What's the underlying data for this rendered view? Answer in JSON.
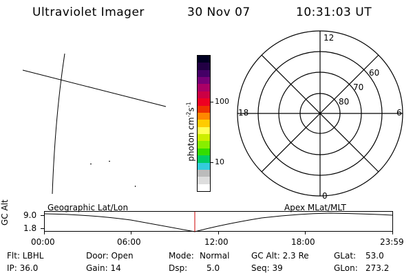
{
  "header": {
    "title": "Ultraviolet Imager",
    "date": "30 Nov 07",
    "time": "10:31:03 UT"
  },
  "colorbar": {
    "label": "photon cm-2s-1",
    "ticks": [
      "100",
      "10"
    ],
    "colors": [
      "#ffffff",
      "#dddddd",
      "#bbbbbb",
      "#33ccdd",
      "#00cc66",
      "#33dd00",
      "#88ee00",
      "#ccee00",
      "#ffff55",
      "#ffcc00",
      "#ff8800",
      "#ee3300",
      "#ee0022",
      "#cc0044",
      "#aa0066",
      "#770077",
      "#440066",
      "#220044",
      "#000022"
    ]
  },
  "polar_plot": {
    "mlt_labels": {
      "top": "12",
      "left": "18",
      "right": "6",
      "bottom": "0"
    },
    "lat_labels": [
      "60",
      "70",
      "80"
    ]
  },
  "timeline": {
    "left_title": "Geographic Lat/Lon",
    "right_title": "Apex MLat/MLT",
    "y_axis_label": "GC Alt",
    "y_ticks": [
      "9.0",
      "1.8"
    ],
    "x_ticks": [
      "00:00",
      "06:00",
      "12:00",
      "18:00",
      "23:59"
    ],
    "marker_color": "#cc0000"
  },
  "status": {
    "flt": "Flt: LBHL",
    "ip": "IP: 36.0",
    "door": "Door: Open",
    "gain": "Gain: 14",
    "mode_label": "Mode:",
    "mode_value": "Normal",
    "dsp_label": "Dsp:",
    "dsp_value": "5.0",
    "gc_alt": "GC Alt: 2.3 Re",
    "seq": "Seq: 39",
    "glat_label": "GLat:",
    "glat_value": "53.0",
    "glon_label": "GLon:",
    "glon_value": "273.2"
  }
}
